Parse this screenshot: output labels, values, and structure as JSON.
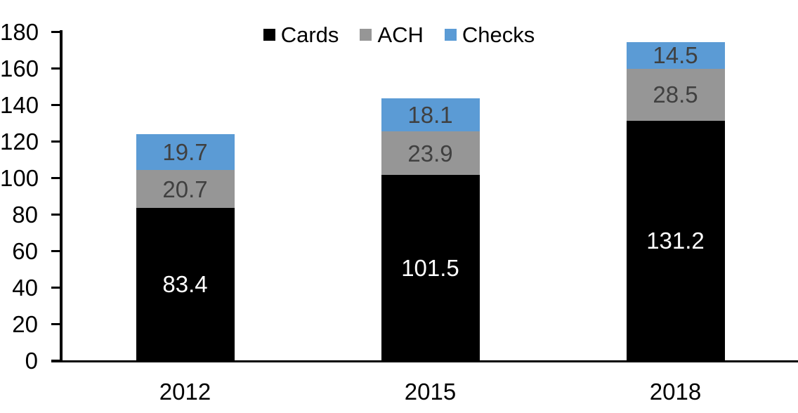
{
  "chart_data": {
    "type": "bar",
    "stacked": true,
    "title": "",
    "categories": [
      "2012",
      "2015",
      "2018"
    ],
    "series": [
      {
        "name": "Cards",
        "color": "#000000",
        "label_color": "#FFFFFF",
        "values": [
          83.4,
          101.5,
          131.2
        ]
      },
      {
        "name": "ACH",
        "color": "#969696",
        "label_color": "#404040",
        "values": [
          20.7,
          23.9,
          28.5
        ]
      },
      {
        "name": "Checks",
        "color": "#5B9BD5",
        "label_color": "#404040",
        "values": [
          19.7,
          18.1,
          14.5
        ]
      }
    ],
    "totals": [
      123.8,
      143.5,
      174.2
    ],
    "ylim": [
      0,
      180
    ],
    "ytick_step": 20,
    "ytick_labels": [
      "0",
      "20",
      "40",
      "60",
      "80",
      "100",
      "120",
      "140",
      "160",
      "180"
    ],
    "xlabel": "",
    "ylabel": "",
    "grid": false,
    "legend_position": "top-center",
    "bar_value_labels_visible": true,
    "value_label_decimals": 1
  }
}
